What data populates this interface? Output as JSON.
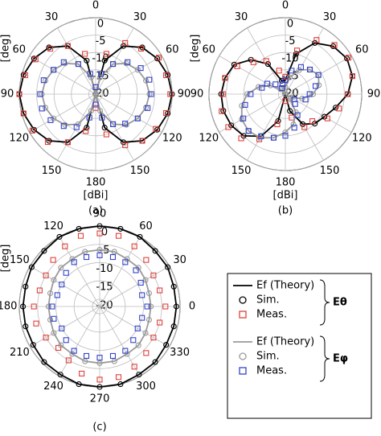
{
  "chart_data": [
    {
      "type": "polar",
      "caption": "(a)",
      "theta_label": "[deg]",
      "r_label": "[dBi]",
      "theta_zero": "N",
      "theta_direction": "clockwise",
      "theta": [
        0,
        15,
        30,
        45,
        60,
        75,
        90,
        105,
        120,
        135,
        150,
        165,
        180,
        195,
        210,
        225,
        240,
        255,
        270,
        285,
        300,
        315,
        330,
        345
      ],
      "thetaticks": [
        0,
        30,
        60,
        90,
        120,
        150,
        180,
        {
          "value": 210,
          "label": "150"
        },
        {
          "value": 240,
          "label": "120"
        },
        {
          "value": 270,
          "label": "90"
        },
        {
          "value": 300,
          "label": "60"
        },
        {
          "value": 330,
          "label": "30"
        }
      ],
      "rlim": [
        -22,
        0
      ],
      "rticks": [
        -20,
        -15,
        -10,
        -5,
        0
      ],
      "groups": [
        {
          "series": [
            {
              "color": "#000000",
              "marker": "line",
              "values": [
                -22,
                -12,
                -6,
                -3,
                -1.5,
                -0.5,
                0,
                -0.5,
                -1.5,
                -3,
                -6,
                -12,
                -22,
                -12,
                -6,
                -3,
                -1.5,
                -0.5,
                0,
                -0.5,
                -1.5,
                -3,
                -6,
                -12
              ]
            },
            {
              "color": "#000000",
              "marker": "circle",
              "values": [
                -22,
                -12,
                -6,
                -3,
                -1.5,
                -0.5,
                0,
                -0.5,
                -1.5,
                -3,
                -6,
                -12,
                -22,
                -12,
                -6,
                -3,
                -1.5,
                -0.5,
                0,
                -0.5,
                -1.5,
                -3,
                -6,
                -12
              ]
            },
            {
              "color": "#e0403a",
              "marker": "square",
              "values": [
                -20,
                -10,
                -5,
                -3.5,
                -1,
                -1,
                -0.5,
                -1,
                -2,
                -3,
                -5,
                -10,
                -18,
                -11,
                -6,
                -2.5,
                -1,
                -0.5,
                0,
                -1,
                -2,
                -3.5,
                -6,
                -10
              ]
            }
          ]
        },
        {
          "series": [
            {
              "color": "#999999",
              "marker": "line",
              "values": [
                -22,
                -17,
                -12,
                -9.5,
                -8,
                -7,
                -6.5,
                -7,
                -8,
                -9.5,
                -12,
                -17,
                -22,
                -17,
                -12,
                -9.5,
                -8,
                -7,
                -6.5,
                -7,
                -8,
                -9.5,
                -12,
                -17
              ]
            },
            {
              "color": "#999999",
              "marker": "circle",
              "values": [
                -22,
                -17,
                -12,
                -9.5,
                -8,
                -7,
                -6.5,
                -7,
                -8,
                -9.5,
                -12,
                -17,
                -22,
                -17,
                -12,
                -9.5,
                -8,
                -7,
                -6.5,
                -7,
                -8,
                -9.5,
                -12,
                -17
              ]
            },
            {
              "color": "#3344cc",
              "marker": "square",
              "values": [
                -20,
                -16,
                -12,
                -9,
                -7,
                -6,
                -6,
                -6.5,
                -8,
                -10,
                -12,
                -15,
                -19,
                -15,
                -11,
                -9,
                -7,
                -6,
                -6,
                -6.5,
                -8,
                -9,
                -12,
                -16
              ]
            }
          ]
        }
      ]
    },
    {
      "type": "polar",
      "caption": "(b)",
      "theta_label": "[deg]",
      "r_label": "[dBi]",
      "theta_zero": "N",
      "theta_direction": "clockwise",
      "theta": [
        0,
        15,
        30,
        45,
        60,
        75,
        90,
        105,
        120,
        135,
        150,
        165,
        180,
        195,
        210,
        225,
        240,
        255,
        270,
        285,
        300,
        315,
        330,
        345
      ],
      "thetaticks": [
        0,
        30,
        60,
        90,
        120,
        150,
        180,
        {
          "value": 210,
          "label": "150"
        },
        {
          "value": 240,
          "label": "120"
        },
        {
          "value": 270,
          "label": "90"
        },
        {
          "value": 300,
          "label": "60"
        },
        {
          "value": 330,
          "label": "30"
        }
      ],
      "rlim": [
        -22,
        0
      ],
      "rticks": [
        -20,
        -15,
        -10,
        -5,
        0
      ],
      "groups": [
        {
          "series": [
            {
              "color": "#000000",
              "marker": "line",
              "values": [
                -18,
                -10,
                -5,
                -2.5,
                -1.5,
                -2,
                -4,
                -7,
                -9,
                -10,
                -12,
                -17,
                -22,
                -14,
                -8,
                -5,
                -4,
                -3.5,
                -3.5,
                -4,
                -5,
                -8,
                -12,
                -18
              ]
            },
            {
              "color": "#000000",
              "marker": "circle",
              "values": [
                -18,
                -10,
                -5,
                -2.5,
                -1.5,
                -2,
                -4,
                -7,
                -9,
                -10,
                -12,
                -17,
                -22,
                -14,
                -8,
                -5,
                -4,
                -3.5,
                -3.5,
                -4,
                -5,
                -8,
                -12,
                -18
              ]
            },
            {
              "color": "#e0403a",
              "marker": "square",
              "values": [
                -17,
                -9,
                -4,
                -2,
                -1,
                -2,
                -4,
                -6,
                -8,
                -11,
                -11,
                -15,
                -20,
                -13,
                -7,
                -4,
                -3,
                -3,
                -4,
                -4,
                -6,
                -9,
                -11,
                -15
              ]
            }
          ]
        },
        {
          "series": [
            {
              "color": "#999999",
              "marker": "line",
              "values": [
                -20,
                -17,
                -14,
                -12,
                -11,
                -12,
                -14,
                -17,
                -20,
                -20,
                -16,
                -13,
                -11,
                -9,
                -7.5,
                -7,
                -7.5,
                -9,
                -11,
                -14,
                -17,
                -20,
                -22,
                -21
              ]
            },
            {
              "color": "#999999",
              "marker": "circle",
              "values": [
                -20,
                -17,
                -14,
                -12,
                -11,
                -12,
                -14,
                -17,
                -20,
                -20,
                -16,
                -13,
                -11,
                -9,
                -7.5,
                -7,
                -7.5,
                -9,
                -11,
                -14,
                -17,
                -20,
                -22,
                -21
              ]
            },
            {
              "color": "#3344cc",
              "marker": "square",
              "values": [
                -18,
                -15,
                -13,
                -12,
                -11,
                -13,
                -15,
                -16,
                -19,
                -18,
                -15,
                -12,
                -10,
                -9,
                -8,
                -7,
                -8,
                -10,
                -12,
                -15,
                -16,
                -18,
                -20,
                -19
              ]
            }
          ]
        }
      ]
    },
    {
      "type": "polar",
      "caption": "(c)",
      "theta_label": "[deg]",
      "theta_zero": "E",
      "theta_direction": "counterclockwise",
      "theta": [
        0,
        15,
        30,
        45,
        60,
        75,
        90,
        105,
        120,
        135,
        150,
        165,
        180,
        195,
        210,
        225,
        240,
        255,
        270,
        285,
        300,
        315,
        330,
        345
      ],
      "thetaticks": [
        0,
        30,
        60,
        90,
        120,
        150,
        180,
        210,
        240,
        270,
        300,
        330
      ],
      "rlim": [
        -22,
        0
      ],
      "rticks": [
        -20,
        -15,
        -10,
        -5,
        0
      ],
      "groups": [
        {
          "label": "Eθ",
          "series": [
            {
              "name": "Ef (Theory)",
              "color": "#000000",
              "marker": "line",
              "values": [
                -1,
                -1,
                -0.5,
                -0.5,
                0,
                0,
                0,
                0,
                0,
                -0.5,
                -0.5,
                -1,
                -1,
                -1,
                -1,
                -0.5,
                -0.5,
                0,
                0,
                0,
                -0.5,
                -0.5,
                -1,
                -1
              ]
            },
            {
              "name": "Sim.",
              "color": "#000000",
              "marker": "circle",
              "values": [
                -1,
                -1,
                -0.5,
                -0.5,
                0,
                0,
                0,
                0,
                0,
                -0.5,
                -0.5,
                -1,
                -1,
                -1,
                -1,
                -0.5,
                -0.5,
                0,
                0,
                0,
                -0.5,
                -0.5,
                -1,
                -1
              ]
            },
            {
              "name": "Meas.",
              "color": "#e0403a",
              "marker": "square",
              "values": [
                -4,
                -5,
                -5,
                -4,
                -3,
                -2,
                -2,
                -2,
                -3,
                -4,
                -5,
                -5,
                -4,
                -4,
                -5,
                -6,
                -5,
                -3,
                -2,
                -2,
                -3,
                -4,
                -5,
                -5
              ]
            }
          ]
        },
        {
          "label": "Eφ",
          "series": [
            {
              "name": "Ef (Theory)",
              "color": "#999999",
              "marker": "line",
              "values": [
                -8,
                -8,
                -7.5,
                -7,
                -7,
                -6.5,
                -6.5,
                -6.5,
                -7,
                -7,
                -7.5,
                -8,
                -8,
                -8,
                -7.5,
                -7,
                -7,
                -6.5,
                -6.5,
                -6.5,
                -7,
                -7,
                -7.5,
                -8
              ]
            },
            {
              "name": "Sim.",
              "color": "#999999",
              "marker": "circle",
              "values": [
                -8,
                -8,
                -7.5,
                -7,
                -7,
                -6.5,
                -6.5,
                -6.5,
                -7,
                -7,
                -7.5,
                -8,
                -8,
                -8,
                -7.5,
                -7,
                -7,
                -6.5,
                -6.5,
                -6.5,
                -7,
                -7,
                -7.5,
                -8
              ]
            },
            {
              "name": "Meas.",
              "color": "#3344cc",
              "marker": "square",
              "values": [
                -9,
                -10,
                -9,
                -8,
                -8,
                -8,
                -8,
                -8,
                -8,
                -9,
                -10,
                -10,
                -9,
                -9,
                -10,
                -9,
                -8,
                -8,
                -8,
                -8,
                -8,
                -9,
                -10,
                -10
              ]
            }
          ]
        }
      ]
    }
  ]
}
